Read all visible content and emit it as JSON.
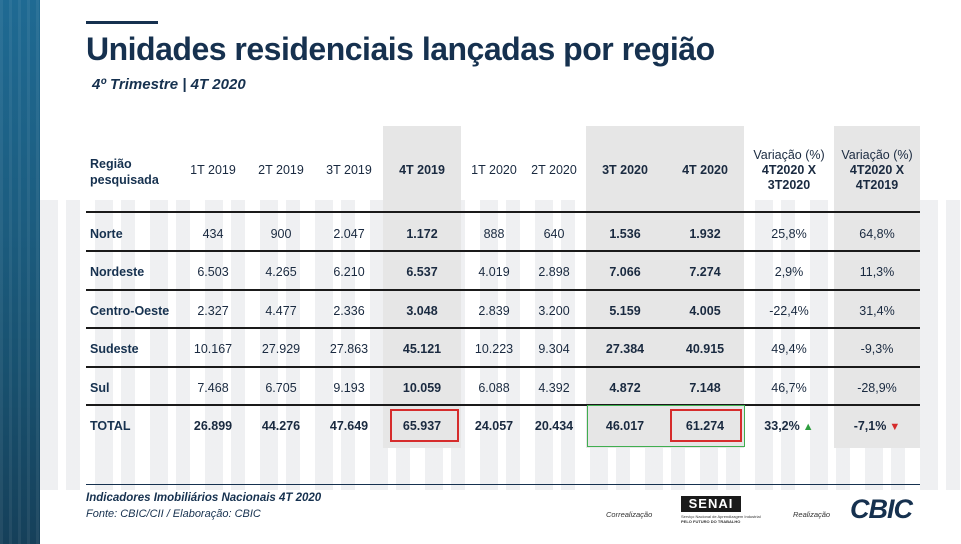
{
  "title": "Unidades residenciais lançadas por região",
  "subtitle": "4º Trimestre | 4T 2020",
  "table": {
    "region_header": [
      "Região",
      "pesquisada"
    ],
    "columns": [
      {
        "label": "1T 2019",
        "bold": false
      },
      {
        "label": "2T 2019",
        "bold": false
      },
      {
        "label": "3T 2019",
        "bold": false
      },
      {
        "label": "4T 2019",
        "bold": true
      },
      {
        "label": "1T 2020",
        "bold": false
      },
      {
        "label": "2T 2020",
        "bold": false
      },
      {
        "label": "3T 2020",
        "bold": true
      },
      {
        "label": "4T 2020",
        "bold": true
      }
    ],
    "var_headers": [
      {
        "line1": "Variação (%)",
        "line2": "4T2020 X",
        "line3": "3T2020"
      },
      {
        "line1": "Variação (%)",
        "line2": "4T2020 X",
        "line3": "4T2019"
      }
    ],
    "rows": [
      {
        "region": "Norte",
        "values": [
          "434",
          "900",
          "2.047",
          "1.172",
          "888",
          "640",
          "1.536",
          "1.932"
        ],
        "var1": "25,8%",
        "var2": "64,8%"
      },
      {
        "region": "Nordeste",
        "values": [
          "6.503",
          "4.265",
          "6.210",
          "6.537",
          "4.019",
          "2.898",
          "7.066",
          "7.274"
        ],
        "var1": "2,9%",
        "var2": "11,3%"
      },
      {
        "region": "Centro-Oeste",
        "values": [
          "2.327",
          "4.477",
          "2.336",
          "3.048",
          "2.839",
          "3.200",
          "5.159",
          "4.005"
        ],
        "var1": "-22,4%",
        "var2": "31,4%"
      },
      {
        "region": "Sudeste",
        "values": [
          "10.167",
          "27.929",
          "27.863",
          "45.121",
          "10.223",
          "9.304",
          "27.384",
          "40.915"
        ],
        "var1": "49,4%",
        "var2": "-9,3%"
      },
      {
        "region": "Sul",
        "values": [
          "7.468",
          "6.705",
          "9.193",
          "10.059",
          "6.088",
          "4.392",
          "4.872",
          "7.148"
        ],
        "var1": "46,7%",
        "var2": "-28,9%"
      }
    ],
    "total": {
      "region": "TOTAL",
      "values": [
        "26.899",
        "44.276",
        "47.649",
        "65.937",
        "24.057",
        "20.434",
        "46.017",
        "61.274"
      ],
      "var1": "33,2%",
      "var2": "-7,1%"
    }
  },
  "footer": {
    "line1": "Indicadores Imobiliários Nacionais 4T 2020",
    "line2": "Fonte: CBIC/CII / Elaboração: CBIC",
    "correalizacao": "Correalização",
    "senai_logo": "SENAI",
    "senai_sub1": "Serviço Nacional de Aprendizagem Industrial",
    "senai_sub2": "PELO FUTURO DO TRABALHO",
    "realizacao": "Realização",
    "cbic_logo": "CBIC"
  },
  "colors": {
    "navy": "#16314f",
    "shade": "#e6e6e6",
    "highlight_red": "#d62c2c",
    "highlight_green": "#3fae4f"
  },
  "icons": {
    "var1_total_arrow": "triangle-up-icon",
    "var2_total_arrow": "triangle-down-icon"
  }
}
